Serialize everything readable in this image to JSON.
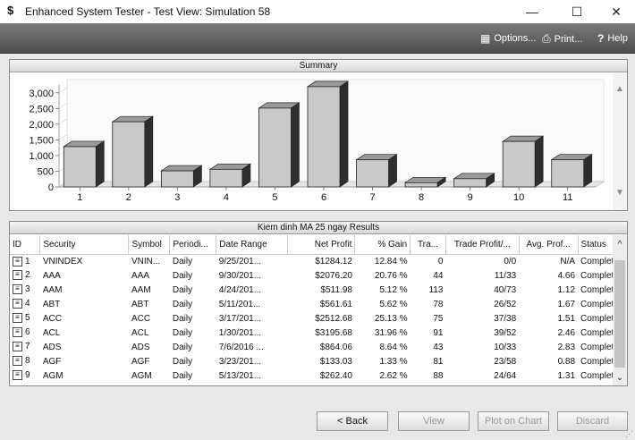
{
  "window": {
    "app_icon": "$",
    "title": "Enhanced System Tester - Test View: Simulation 58",
    "minimize": "—",
    "maximize": "☐",
    "close": "✕"
  },
  "toolbar": {
    "options_label": "Options...",
    "print_label": "Print...",
    "help_label": "Help"
  },
  "summary": {
    "header": "Summary"
  },
  "chart_data": {
    "type": "bar",
    "categories": [
      "1",
      "2",
      "3",
      "4",
      "5",
      "6",
      "7",
      "8",
      "9",
      "10",
      "11"
    ],
    "values": [
      1284.12,
      2076.2,
      511.98,
      561.61,
      2512.68,
      3195.68,
      864.06,
      133.03,
      262.4,
      1450,
      864
    ],
    "ylim": [
      0,
      3250
    ],
    "y_ticks": [
      0,
      500,
      1000,
      1500,
      2000,
      2500,
      3000
    ],
    "y_tick_labels": [
      "0",
      "500",
      "1,000",
      "1,500",
      "2,000",
      "2,500",
      "3,000"
    ],
    "grid": false
  },
  "results": {
    "header": "Kiem dinh MA 25 ngay Results",
    "columns": [
      "ID",
      "Security",
      "Symbol",
      "Periodi...",
      "Date Range",
      "Net Profit",
      "% Gain",
      "Tra...",
      "Trade Profit/...",
      "Avg. Prof...",
      "Status"
    ],
    "rows": [
      [
        "1",
        "VNINDEX",
        "VNIN...",
        "Daily",
        "9/25/201...",
        "$1284.12",
        "12.84 %",
        "0",
        "0/0",
        "N/A",
        "Completed"
      ],
      [
        "2",
        "AAA",
        "AAA",
        "Daily",
        "9/30/201...",
        "$2076.20",
        "20.76 %",
        "44",
        "11/33",
        "4.66",
        "Completed"
      ],
      [
        "3",
        "AAM",
        "AAM",
        "Daily",
        "4/24/201...",
        "$511.98",
        "5.12 %",
        "113",
        "40/73",
        "1.12",
        "Completed"
      ],
      [
        "4",
        "ABT",
        "ABT",
        "Daily",
        "5/11/201...",
        "$561.61",
        "5.62 %",
        "78",
        "26/52",
        "1.67",
        "Completed"
      ],
      [
        "5",
        "ACC",
        "ACC",
        "Daily",
        "3/17/201...",
        "$2512.68",
        "25.13 %",
        "75",
        "37/38",
        "1.51",
        "Completed"
      ],
      [
        "6",
        "ACL",
        "ACL",
        "Daily",
        "1/30/201...",
        "$3195.68",
        "31.96 %",
        "91",
        "39/52",
        "2.46",
        "Completed"
      ],
      [
        "7",
        "ADS",
        "ADS",
        "Daily",
        "7/6/2016 ...",
        "$864.06",
        "8.64 %",
        "43",
        "10/33",
        "2.83",
        "Completed"
      ],
      [
        "8",
        "AGF",
        "AGF",
        "Daily",
        "3/23/201...",
        "$133.03",
        "1.33 %",
        "81",
        "23/58",
        "0.88",
        "Completed"
      ],
      [
        "9",
        "AGM",
        "AGM",
        "Daily",
        "5/13/201...",
        "$262.40",
        "2.62 %",
        "88",
        "24/64",
        "1.31",
        "Completed"
      ]
    ]
  },
  "footer": {
    "back_label": "< Back",
    "view_label": "View",
    "plot_label": "Plot on Chart",
    "discard_label": "Discard"
  }
}
